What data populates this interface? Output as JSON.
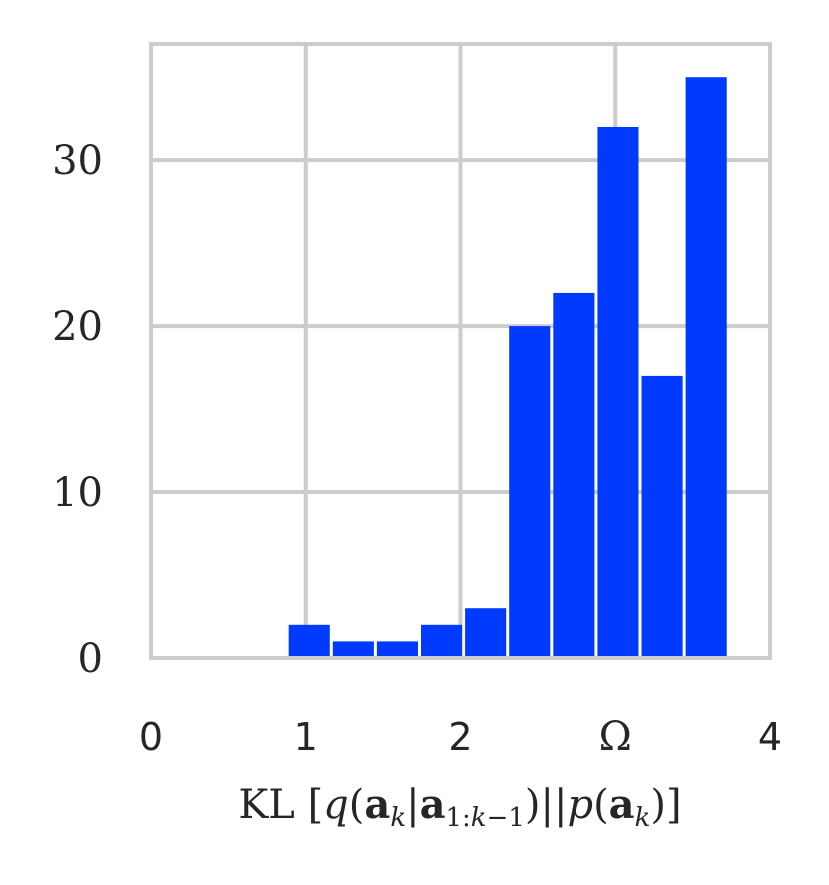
{
  "chart_data": {
    "type": "bar",
    "title": "",
    "xlabel": "KL [q(a_k|a_{1:k-1})||p(a_k)]",
    "ylabel": "",
    "xlim": [
      0,
      4
    ],
    "ylim": [
      0,
      37
    ],
    "grid": true,
    "color": "#0039ff",
    "xticks": [
      {
        "value": 0,
        "label": "0"
      },
      {
        "value": 1,
        "label": "1"
      },
      {
        "value": 2,
        "label": "2"
      },
      {
        "value": 3,
        "label": "Ω"
      },
      {
        "value": 4,
        "label": "4"
      }
    ],
    "yticks": [
      {
        "value": 0,
        "label": "0"
      },
      {
        "value": 10,
        "label": "10"
      },
      {
        "value": 20,
        "label": "20"
      },
      {
        "value": 30,
        "label": "30"
      }
    ],
    "bin_width": 0.285,
    "bins": [
      {
        "left": 0.88,
        "value": 2
      },
      {
        "left": 1.165,
        "value": 1
      },
      {
        "left": 1.45,
        "value": 1
      },
      {
        "left": 1.735,
        "value": 2
      },
      {
        "left": 2.02,
        "value": 3
      },
      {
        "left": 2.305,
        "value": 20
      },
      {
        "left": 2.59,
        "value": 22
      },
      {
        "left": 2.875,
        "value": 32
      },
      {
        "left": 3.16,
        "value": 17
      },
      {
        "left": 3.445,
        "value": 35
      }
    ]
  }
}
